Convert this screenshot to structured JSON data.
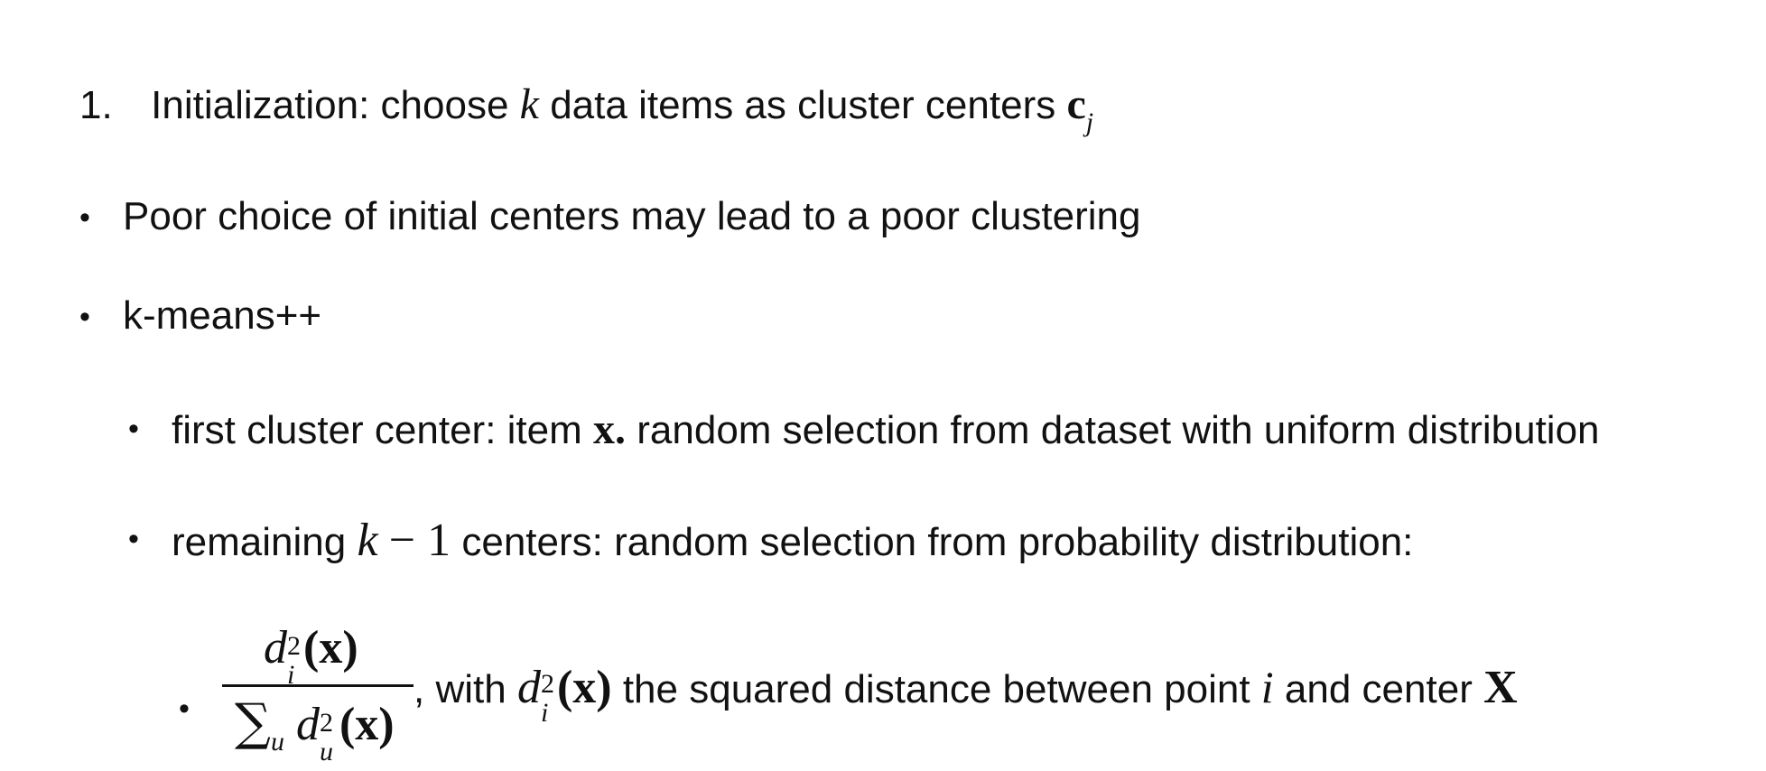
{
  "step1": {
    "number": "1.",
    "text_before": "Initialization: choose",
    "k": "k",
    "text_after": "data items as cluster centers",
    "c_symbol": "c",
    "c_sub": "j"
  },
  "bullets": {
    "poor_choice": "Poor choice of initial centers may lead to a poor clustering",
    "kmeans_pp": "k-means++",
    "first_center": {
      "before": "first cluster center: item",
      "x_symbol": "x.",
      "after": "random selection from dataset with uniform distribution"
    },
    "remaining": {
      "before": "remaining",
      "k": "k",
      "minus_one": "− 1",
      "after": "centers: random selection from probability distribution:"
    },
    "formula": {
      "num_d": "d",
      "num_sup": "2",
      "num_sub": "i",
      "num_x": "(x)",
      "den_sigma": "∑",
      "den_sigma_sub": "u",
      "den_d": "d",
      "den_sup": "2",
      "den_sub": "u",
      "den_x": "(x)",
      "comma": ",",
      "with_text": "with",
      "d": "d",
      "d_sup": "2",
      "d_sub": "i",
      "d_x": "(x)",
      "desc_before": "the squared distance between point",
      "i": "i",
      "desc_mid": "and center",
      "X": "X"
    }
  },
  "bullet_glyph": "•"
}
